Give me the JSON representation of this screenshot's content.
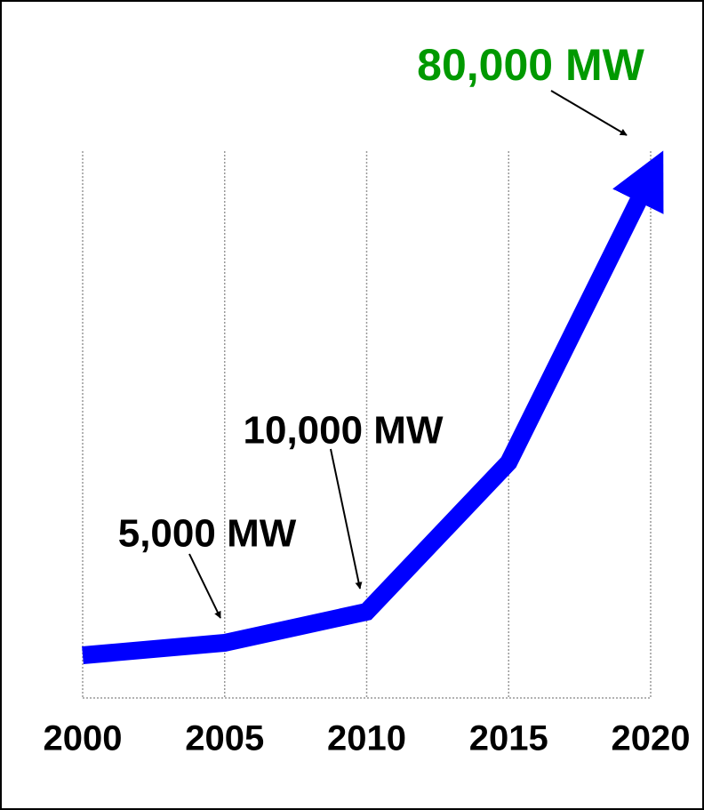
{
  "chart_data": {
    "type": "line",
    "x": [
      2000,
      2005,
      2010,
      2015,
      2020
    ],
    "series": [
      {
        "color": "#0000ff",
        "values": [
          3000,
          5000,
          10000,
          34000,
          80000
        ],
        "value_labels": [
          null,
          "5,000 MW",
          "10,000 MW",
          null,
          "80,000 MW"
        ],
        "value_label_colors": [
          null,
          "#000000",
          "#000000",
          null,
          "#009900"
        ]
      }
    ],
    "xlim": [
      2000,
      2020
    ],
    "xticks": [
      2000,
      2005,
      2010,
      2015,
      2020
    ],
    "ylim": [
      0,
      90000
    ],
    "grid": true
  }
}
